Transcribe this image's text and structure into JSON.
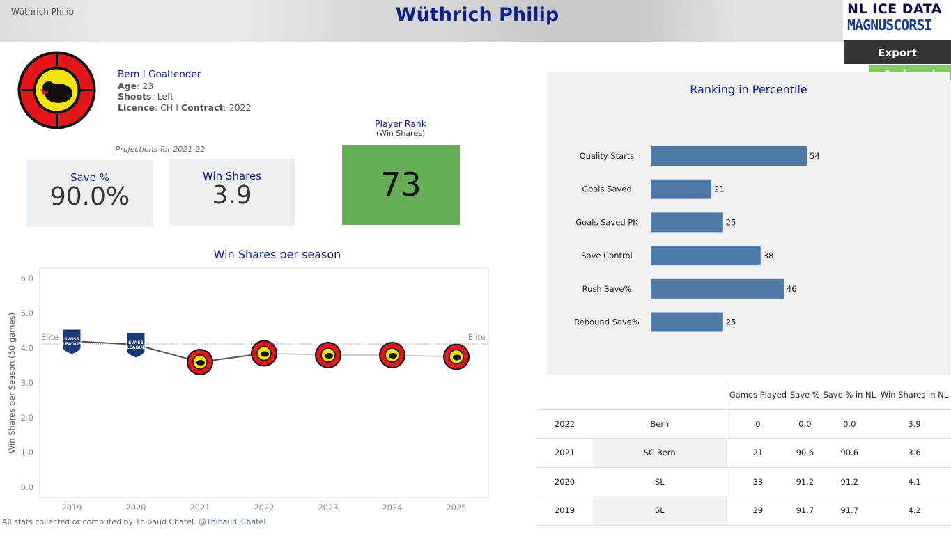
{
  "header": {
    "small_name": "Wüthrich Philip",
    "title": "Wüthrich Philip",
    "brand_top": "NL ICE DATA",
    "brand_bottom": "MAGNUSCORSI",
    "export_label": "Export",
    "legend_label": "See Legend"
  },
  "player": {
    "team_line": "Bern  I  Goaltender",
    "age_label": "Age",
    "age": "23",
    "shoots_label": "Shoots",
    "shoots": "Left",
    "licence_label": "Licence",
    "licence": "CH",
    "separator": "I",
    "contract_label": "Contract",
    "contract": "2022",
    "logo_icon": "sc-bern-bear-logo"
  },
  "projections": {
    "caption": "Projections for 2021-22",
    "save_label": "Save %",
    "save_value": "90.0%",
    "ws_label": "Win Shares",
    "ws_value": "3.9",
    "rank_label": "Player Rank",
    "rank_sub": "(Win Shares)",
    "rank_value": "73",
    "rank_color": "#66ad57"
  },
  "chart_data": [
    {
      "type": "line",
      "title": "Win Shares per season",
      "ylabel": "Win Shares per Season (50 games)",
      "xlabel": "",
      "x": [
        "2019",
        "2020",
        "2021",
        "2022",
        "2023",
        "2024",
        "2025"
      ],
      "values": [
        4.2,
        4.1,
        3.6,
        3.85,
        3.8,
        3.8,
        3.75
      ],
      "markers": [
        "swiss-league-logo",
        "swiss-league-logo",
        "sc-bern-logo",
        "sc-bern-logo",
        "sc-bern-logo",
        "sc-bern-logo",
        "sc-bern-logo"
      ],
      "y_ticks": [
        "0.0",
        "1.0",
        "2.0",
        "3.0",
        "4.0",
        "5.0",
        "6.0"
      ],
      "ylim": [
        -0.3,
        6.3
      ],
      "reference_line": {
        "label": "Elite",
        "value": 4.12
      },
      "grid": false,
      "colors": {
        "past": "#555555",
        "future": "#cccccc"
      }
    },
    {
      "type": "bar",
      "orientation": "horizontal",
      "title": "Ranking in Percentile",
      "categories": [
        "Quality Starts",
        "Goals Saved",
        "Goals Saved PK",
        "Save Control",
        "Rush Save%",
        "Rebound Save%"
      ],
      "values": [
        54,
        21,
        25,
        38,
        46,
        25
      ],
      "xlim": [
        0,
        100
      ],
      "bar_color": "#4e79a7"
    }
  ],
  "table": {
    "headers": [
      "",
      "",
      "Games Played",
      "Save %",
      "Save % in NL",
      "Win Shares in NL"
    ],
    "rows": [
      [
        "2022",
        "Bern",
        "0",
        "0.0",
        "0.0",
        "3.9"
      ],
      [
        "2021",
        "SC Bern",
        "21",
        "90.6",
        "90.6",
        "3.6"
      ],
      [
        "2020",
        "SL",
        "33",
        "91.2",
        "91.2",
        "4.1"
      ],
      [
        "2019",
        "SL",
        "29",
        "91.7",
        "91.7",
        "4.2"
      ]
    ]
  },
  "footer": {
    "text": "All stats collected or computed by Thibaud Chatel.",
    "handle": "@Thibaud_Chatel"
  }
}
